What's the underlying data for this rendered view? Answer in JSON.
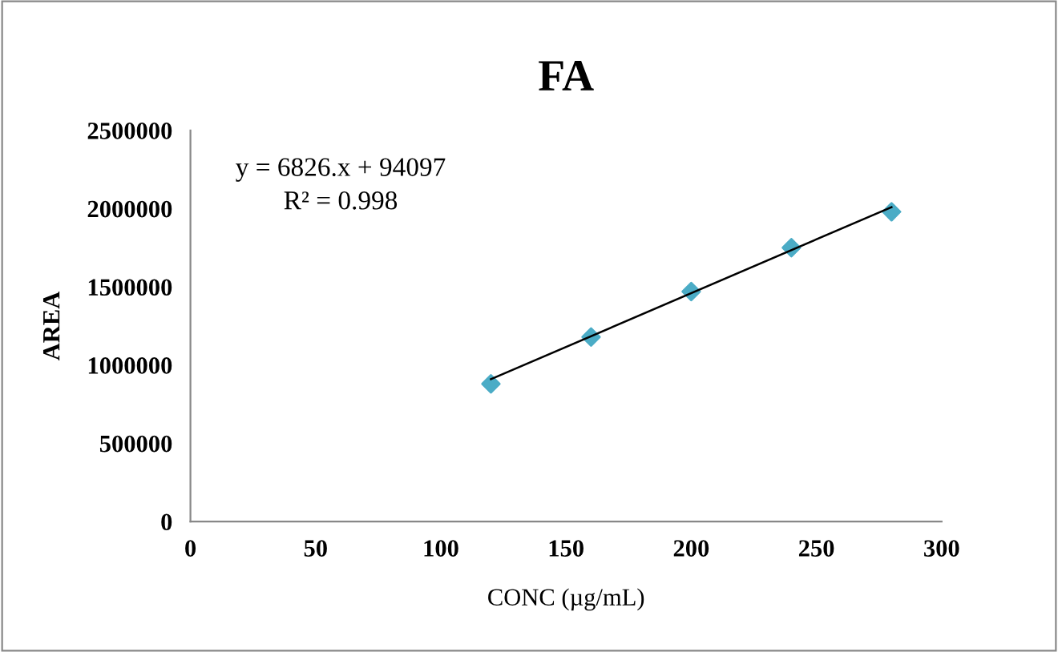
{
  "chart_data": {
    "type": "scatter",
    "title": "FA",
    "xlabel": "CONC (µg/mL)",
    "ylabel": "AREA",
    "x": [
      120,
      160,
      200,
      240,
      280
    ],
    "series": [
      {
        "color": "#4bacc6",
        "values": [
          880000,
          1180000,
          1470000,
          1750000,
          1980000
        ],
        "marker": "diamond"
      },
      {
        "type": "line",
        "color": "#000000",
        "x": [
          120,
          280
        ],
        "values": [
          910000,
          2010000
        ],
        "marker": "none"
      }
    ],
    "annotations": [
      "y = 6826.x + 94097",
      "R² = 0.998"
    ],
    "xlim": [
      0,
      300
    ],
    "xticks": [
      0,
      50,
      100,
      150,
      200,
      250,
      300
    ],
    "ylim": [
      0,
      2500000
    ],
    "yticks": [
      0,
      500000,
      1000000,
      1500000,
      2000000,
      2500000
    ],
    "grid": false,
    "legend": false
  }
}
